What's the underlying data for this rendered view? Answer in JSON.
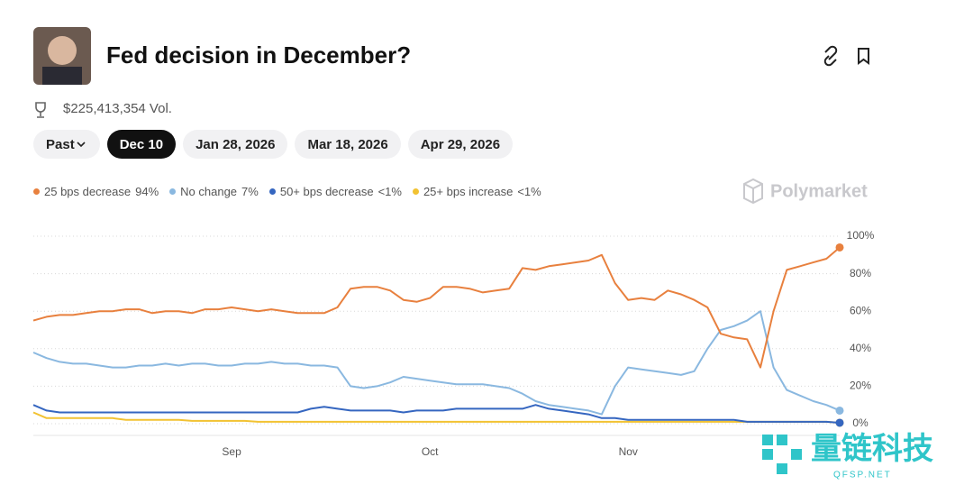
{
  "header": {
    "title": "Fed decision in December?",
    "volume": "$225,413,354 Vol."
  },
  "tabs": [
    "Past",
    "Dec 10",
    "Jan 28, 2026",
    "Mar 18, 2026",
    "Apr 29, 2026"
  ],
  "brand": "Polymarket",
  "watermark": {
    "title": "量链科技",
    "subtitle": "QFSP.NET"
  },
  "chart_data": {
    "type": "line",
    "categories": [
      null,
      null,
      null,
      null,
      null,
      null,
      null,
      null,
      null,
      null,
      null,
      null,
      null,
      null,
      null,
      "Sep",
      null,
      null,
      null,
      null,
      null,
      null,
      null,
      null,
      null,
      null,
      null,
      null,
      null,
      null,
      "Oct",
      null,
      null,
      null,
      null,
      null,
      null,
      null,
      null,
      null,
      null,
      null,
      null,
      null,
      null,
      "Nov",
      null,
      null,
      null,
      null,
      null,
      null,
      null,
      null,
      null,
      null,
      null,
      null,
      null,
      null,
      null,
      null
    ],
    "series": [
      {
        "name": "25 bps decrease",
        "current": "94%",
        "color": "#e8803e",
        "values": [
          55,
          57,
          58,
          58,
          59,
          60,
          60,
          61,
          61,
          59,
          60,
          60,
          59,
          61,
          61,
          62,
          61,
          60,
          61,
          60,
          59,
          59,
          59,
          62,
          72,
          73,
          73,
          71,
          66,
          65,
          67,
          73,
          73,
          72,
          70,
          71,
          72,
          83,
          82,
          84,
          85,
          86,
          87,
          90,
          75,
          66,
          67,
          66,
          71,
          69,
          66,
          62,
          48,
          46,
          45,
          30,
          60,
          82,
          84,
          86,
          88,
          94
        ]
      },
      {
        "name": "No change",
        "current": "7%",
        "color": "#8ab8e0",
        "values": [
          38,
          35,
          33,
          32,
          32,
          31,
          30,
          30,
          31,
          31,
          32,
          31,
          32,
          32,
          31,
          31,
          32,
          32,
          33,
          32,
          32,
          31,
          31,
          30,
          20,
          19,
          20,
          22,
          25,
          24,
          23,
          22,
          21,
          21,
          21,
          20,
          19,
          16,
          12,
          10,
          9,
          8,
          7,
          5,
          20,
          30,
          29,
          28,
          27,
          26,
          28,
          40,
          50,
          52,
          55,
          60,
          30,
          18,
          15,
          12,
          10,
          7
        ]
      },
      {
        "name": "50+ bps decrease",
        "current": "<1%",
        "color": "#3566c0",
        "values": [
          10,
          7,
          6,
          6,
          6,
          6,
          6,
          6,
          6,
          6,
          6,
          6,
          6,
          6,
          6,
          6,
          6,
          6,
          6,
          6,
          6,
          8,
          9,
          8,
          7,
          7,
          7,
          7,
          6,
          7,
          7,
          7,
          8,
          8,
          8,
          8,
          8,
          8,
          10,
          8,
          7,
          6,
          5,
          3,
          3,
          2,
          2,
          2,
          2,
          2,
          2,
          2,
          2,
          2,
          1,
          1,
          1,
          1,
          1,
          1,
          1,
          0.5
        ]
      },
      {
        "name": "25+ bps increase",
        "current": "<1%",
        "color": "#f2c232",
        "values": [
          6,
          3,
          3,
          3,
          3,
          3,
          3,
          2,
          2,
          2,
          2,
          2,
          1.5,
          1.5,
          1.5,
          1.5,
          1.5,
          1,
          1,
          1,
          1,
          1,
          1,
          1,
          1,
          1,
          1,
          1,
          1,
          1,
          1,
          1,
          1,
          1,
          1,
          1,
          1,
          1,
          1,
          1,
          1,
          1,
          1,
          1,
          1,
          1,
          1,
          1,
          1,
          1,
          1,
          1,
          1,
          1,
          1,
          1,
          1,
          1,
          1,
          1,
          1,
          0.5
        ]
      }
    ],
    "ylim": [
      0,
      100
    ],
    "yticks": [
      {
        "value": 0,
        "label": "0%"
      },
      {
        "value": 20,
        "label": "20%"
      },
      {
        "value": 40,
        "label": "40%"
      },
      {
        "value": 60,
        "label": "60%"
      },
      {
        "value": 80,
        "label": "80%"
      },
      {
        "value": 100,
        "label": "100%"
      }
    ],
    "grid": true
  }
}
